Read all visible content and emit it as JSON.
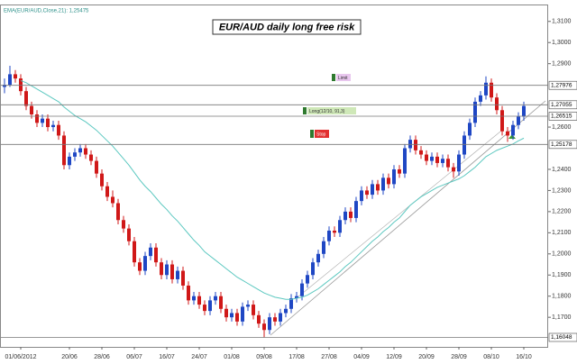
{
  "chart_data": {
    "type": "candlestick",
    "title": "EUR/AUD daily long free risk",
    "indicator_label": "EMA(EUR/AUD,Close,21): 1,25475",
    "categories": [
      null,
      null,
      null,
      "01/06/2012",
      null,
      null,
      null,
      null,
      null,
      null,
      null,
      null,
      "20/06",
      null,
      null,
      null,
      null,
      null,
      "28/06",
      null,
      null,
      null,
      null,
      null,
      "06/07",
      null,
      null,
      null,
      null,
      null,
      "16/07",
      null,
      null,
      null,
      null,
      null,
      "24/07",
      null,
      null,
      null,
      null,
      null,
      "01/08",
      null,
      null,
      null,
      null,
      null,
      "09/08",
      null,
      null,
      null,
      null,
      null,
      "17/08",
      null,
      null,
      null,
      null,
      null,
      "27/08",
      null,
      null,
      null,
      null,
      null,
      "04/09",
      null,
      null,
      null,
      null,
      null,
      "12/09",
      null,
      null,
      null,
      null,
      null,
      "20/09",
      null,
      null,
      null,
      null,
      null,
      "28/09",
      null,
      null,
      null,
      null,
      null,
      "08/10",
      null,
      null,
      null,
      null,
      null,
      "16/10"
    ],
    "open": [
      1.279,
      1.28,
      1.285,
      1.283,
      1.277,
      1.27,
      1.266,
      1.262,
      1.264,
      1.26,
      1.261,
      1.256,
      1.242,
      1.246,
      1.248,
      1.25,
      1.247,
      1.244,
      1.238,
      1.232,
      1.227,
      1.224,
      1.216,
      1.212,
      1.206,
      1.196,
      1.192,
      1.199,
      1.203,
      1.196,
      1.19,
      1.195,
      1.188,
      1.192,
      1.185,
      1.178,
      1.18,
      1.176,
      1.173,
      1.178,
      1.18,
      1.174,
      1.17,
      1.172,
      1.168,
      1.175,
      1.176,
      1.171,
      1.167,
      1.164,
      1.17,
      1.168,
      1.172,
      1.174,
      1.179,
      1.18,
      1.186,
      1.19,
      1.196,
      1.2,
      1.206,
      1.211,
      1.21,
      1.216,
      1.22,
      1.217,
      1.225,
      1.23,
      1.228,
      1.233,
      1.23,
      1.236,
      1.233,
      1.24,
      1.238,
      1.25,
      1.254,
      1.249,
      1.247,
      1.244,
      1.246,
      1.243,
      1.245,
      1.241,
      1.239,
      1.247,
      1.256,
      1.262,
      1.272,
      1.275,
      1.281,
      1.274,
      1.268,
      1.258,
      1.256,
      1.261,
      1.265
    ],
    "high": [
      1.283,
      1.289,
      1.287,
      1.285,
      1.279,
      1.272,
      1.268,
      1.266,
      1.266,
      1.263,
      1.263,
      1.258,
      1.248,
      1.25,
      1.252,
      1.252,
      1.249,
      1.246,
      1.24,
      1.234,
      1.23,
      1.226,
      1.218,
      1.214,
      1.208,
      1.198,
      1.201,
      1.205,
      1.205,
      1.198,
      1.197,
      1.197,
      1.194,
      1.194,
      1.187,
      1.182,
      1.182,
      1.178,
      1.18,
      1.182,
      1.182,
      1.176,
      1.174,
      1.174,
      1.177,
      1.178,
      1.178,
      1.173,
      1.169,
      1.172,
      1.172,
      1.174,
      1.176,
      1.181,
      1.182,
      1.188,
      1.192,
      1.198,
      1.202,
      1.208,
      1.213,
      1.213,
      1.218,
      1.222,
      1.222,
      1.227,
      1.232,
      1.232,
      1.235,
      1.235,
      1.238,
      1.238,
      1.242,
      1.242,
      1.252,
      1.256,
      1.256,
      1.251,
      1.249,
      1.248,
      1.248,
      1.247,
      1.247,
      1.243,
      1.249,
      1.258,
      1.264,
      1.274,
      1.277,
      1.284,
      1.283,
      1.276,
      1.27,
      1.26,
      1.263,
      1.267,
      1.272
    ],
    "low": [
      1.276,
      1.279,
      1.281,
      1.275,
      1.268,
      1.264,
      1.26,
      1.26,
      1.258,
      1.258,
      1.254,
      1.24,
      1.24,
      1.244,
      1.246,
      1.245,
      1.242,
      1.236,
      1.23,
      1.225,
      1.222,
      1.214,
      1.21,
      1.204,
      1.194,
      1.19,
      1.19,
      1.197,
      1.194,
      1.188,
      1.188,
      1.186,
      1.186,
      1.183,
      1.176,
      1.176,
      1.174,
      1.171,
      1.171,
      1.176,
      1.172,
      1.168,
      1.168,
      1.166,
      1.166,
      1.173,
      1.169,
      1.165,
      1.1605,
      1.162,
      1.166,
      1.166,
      1.17,
      1.172,
      1.177,
      1.178,
      1.184,
      1.188,
      1.194,
      1.198,
      1.204,
      1.208,
      1.208,
      1.214,
      1.215,
      1.215,
      1.223,
      1.226,
      1.226,
      1.228,
      1.228,
      1.231,
      1.231,
      1.236,
      1.236,
      1.248,
      1.247,
      1.245,
      1.242,
      1.242,
      1.241,
      1.241,
      1.239,
      1.236,
      1.237,
      1.245,
      1.254,
      1.26,
      1.27,
      1.273,
      1.272,
      1.266,
      1.256,
      1.253,
      1.254,
      1.259,
      1.263
    ],
    "close": [
      1.28,
      1.285,
      1.283,
      1.277,
      1.27,
      1.266,
      1.262,
      1.264,
      1.26,
      1.261,
      1.256,
      1.242,
      1.246,
      1.248,
      1.25,
      1.247,
      1.244,
      1.238,
      1.232,
      1.227,
      1.224,
      1.216,
      1.212,
      1.206,
      1.196,
      1.192,
      1.199,
      1.203,
      1.196,
      1.19,
      1.195,
      1.188,
      1.192,
      1.185,
      1.178,
      1.18,
      1.176,
      1.173,
      1.178,
      1.18,
      1.174,
      1.17,
      1.172,
      1.168,
      1.175,
      1.176,
      1.171,
      1.167,
      1.164,
      1.17,
      1.168,
      1.172,
      1.174,
      1.179,
      1.18,
      1.186,
      1.19,
      1.196,
      1.2,
      1.206,
      1.211,
      1.21,
      1.216,
      1.22,
      1.217,
      1.225,
      1.23,
      1.228,
      1.233,
      1.23,
      1.236,
      1.233,
      1.24,
      1.238,
      1.25,
      1.254,
      1.249,
      1.247,
      1.244,
      1.246,
      1.243,
      1.245,
      1.241,
      1.239,
      1.247,
      1.256,
      1.262,
      1.272,
      1.275,
      1.281,
      1.274,
      1.268,
      1.258,
      1.256,
      1.261,
      1.265,
      1.27
    ],
    "up_color": "#1f47c4",
    "down_color": "#d01818",
    "ema": {
      "color": "#5cc8c0",
      "values": [
        null,
        null,
        null,
        1.282,
        1.281,
        1.2795,
        1.278,
        1.2765,
        1.275,
        1.2735,
        1.272,
        1.2695,
        1.2675,
        1.2655,
        1.264,
        1.2625,
        1.2605,
        1.2585,
        1.256,
        1.2535,
        1.251,
        1.248,
        1.245,
        1.242,
        1.2385,
        1.235,
        1.232,
        1.2295,
        1.2265,
        1.2235,
        1.221,
        1.218,
        1.2155,
        1.2125,
        1.2095,
        1.2065,
        1.204,
        1.201,
        1.199,
        1.197,
        1.195,
        1.193,
        1.191,
        1.189,
        1.1875,
        1.186,
        1.1845,
        1.183,
        1.1815,
        1.1805,
        1.1795,
        1.179,
        1.1785,
        1.1785,
        1.179,
        1.1795,
        1.1805,
        1.182,
        1.1835,
        1.1855,
        1.1875,
        1.1895,
        1.1915,
        1.194,
        1.196,
        1.1985,
        1.201,
        1.2035,
        1.206,
        1.208,
        1.2105,
        1.2125,
        1.215,
        1.217,
        1.22,
        1.223,
        1.225,
        1.227,
        1.2285,
        1.23,
        1.2315,
        1.2325,
        1.2335,
        1.2345,
        1.2355,
        1.237,
        1.239,
        1.241,
        1.2435,
        1.246,
        1.2475,
        1.249,
        1.25,
        1.251,
        1.252,
        1.2535,
        1.25475
      ]
    },
    "levels": [
      {
        "value": 1.27976,
        "label": "1,27976"
      },
      {
        "value": 1.27055,
        "label": "1,27055"
      },
      {
        "value": 1.26515,
        "label": "1,26515"
      },
      {
        "value": 1.25178,
        "label": "1,25178"
      },
      {
        "value": 1.16048,
        "label": "1,16048"
      }
    ],
    "annotations": [
      "Limit",
      "Long(12/10, 91,3)",
      "Stop"
    ],
    "ylim": [
      1.156,
      1.318
    ],
    "yticks": [
      {
        "value": 1.17,
        "label": "1,1700"
      },
      {
        "value": 1.18,
        "label": "1,1800"
      },
      {
        "value": 1.19,
        "label": "1,1900"
      },
      {
        "value": 1.2,
        "label": "1,2000"
      },
      {
        "value": 1.21,
        "label": "1,2100"
      },
      {
        "value": 1.22,
        "label": "1,2200"
      },
      {
        "value": 1.23,
        "label": "1,2300"
      },
      {
        "value": 1.24,
        "label": "1,2400"
      },
      {
        "value": 1.26,
        "label": "1,2600"
      },
      {
        "value": 1.29,
        "label": "1,2900"
      },
      {
        "value": 1.3,
        "label": "1,3000"
      },
      {
        "value": 1.31,
        "label": "1,3100"
      }
    ]
  }
}
